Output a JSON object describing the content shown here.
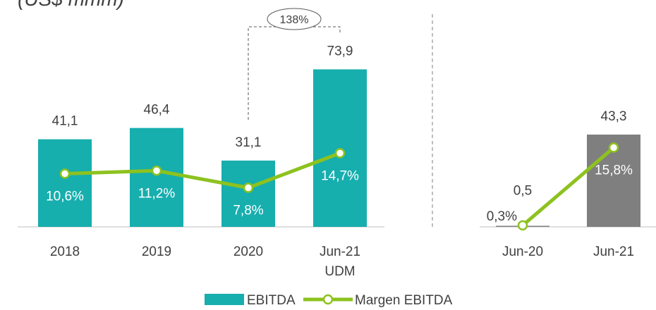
{
  "chart_data": [
    {
      "type": "bar",
      "title": "(US$ mmm)",
      "categories": [
        "2018",
        "2019",
        "2020",
        "Jun-21\nUDM"
      ],
      "ylim": [
        0,
        80
      ],
      "y2lim": [
        0,
        34
      ],
      "annotation": "138%",
      "series": [
        {
          "name": "EBITDA",
          "color": "#17aeae",
          "values": [
            41.1,
            46.4,
            31.1,
            73.9
          ],
          "value_labels": [
            "41,1",
            "46,4",
            "31,1",
            "73,9"
          ]
        },
        {
          "name": "Margen EBITDA",
          "type": "line",
          "axis": "y2",
          "color": "#8dc21f",
          "values": [
            10.6,
            11.2,
            7.8,
            14.7
          ],
          "value_labels": [
            "10,6%",
            "11,2%",
            "7,8%",
            "14,7%"
          ]
        }
      ]
    },
    {
      "type": "bar",
      "categories": [
        "Jun-20",
        "Jun-21"
      ],
      "ylim": [
        0,
        80
      ],
      "y2lim": [
        0,
        34
      ],
      "series": [
        {
          "color": "#7f7f7f",
          "values": [
            0.5,
            43.3
          ],
          "value_labels": [
            "0,5",
            "43,3"
          ]
        },
        {
          "type": "line",
          "axis": "y2",
          "color": "#8dc21f",
          "values": [
            0.3,
            15.8
          ],
          "value_labels": [
            "0,3%",
            "15,8%"
          ]
        }
      ]
    }
  ]
}
